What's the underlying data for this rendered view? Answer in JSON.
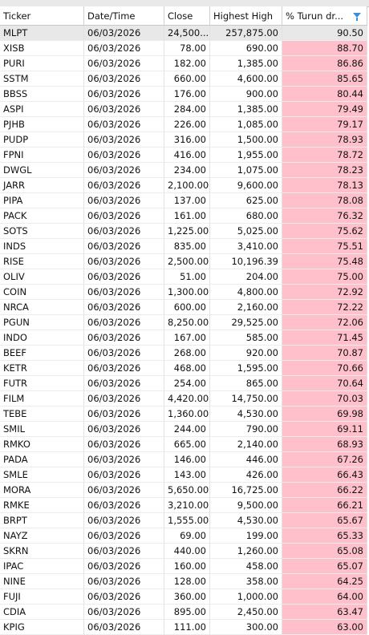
{
  "table": {
    "header": [
      "Ticker",
      "Date/Time",
      "Close",
      "Highest High",
      "% Turun dr..."
    ],
    "rows": [
      [
        "MLPT",
        "06/03/2026",
        "24,500....",
        "257,875.00",
        "90.50"
      ],
      [
        "XISB",
        "06/03/2026",
        "78.00",
        "690.00",
        "88.70"
      ],
      [
        "PURI",
        "06/03/2026",
        "182.00",
        "1,385.00",
        "86.86"
      ],
      [
        "SSTM",
        "06/03/2026",
        "660.00",
        "4,600.00",
        "85.65"
      ],
      [
        "BBSS",
        "06/03/2026",
        "176.00",
        "900.00",
        "80.44"
      ],
      [
        "ASPI",
        "06/03/2026",
        "284.00",
        "1,385.00",
        "79.49"
      ],
      [
        "PJHB",
        "06/03/2026",
        "226.00",
        "1,085.00",
        "79.17"
      ],
      [
        "PUDP",
        "06/03/2026",
        "316.00",
        "1,500.00",
        "78.93"
      ],
      [
        "FPNI",
        "06/03/2026",
        "416.00",
        "1,955.00",
        "78.72"
      ],
      [
        "DWGL",
        "06/03/2026",
        "234.00",
        "1,075.00",
        "78.23"
      ],
      [
        "JARR",
        "06/03/2026",
        "2,100.00",
        "9,600.00",
        "78.13"
      ],
      [
        "PIPA",
        "06/03/2026",
        "137.00",
        "625.00",
        "78.08"
      ],
      [
        "PACK",
        "06/03/2026",
        "161.00",
        "680.00",
        "76.32"
      ],
      [
        "SOTS",
        "06/03/2026",
        "1,225.00",
        "5,025.00",
        "75.62"
      ],
      [
        "INDS",
        "06/03/2026",
        "835.00",
        "3,410.00",
        "75.51"
      ],
      [
        "RISE",
        "06/03/2026",
        "2,500.00",
        "10,196.39",
        "75.48"
      ],
      [
        "OLIV",
        "06/03/2026",
        "51.00",
        "204.00",
        "75.00"
      ],
      [
        "COIN",
        "06/03/2026",
        "1,300.00",
        "4,800.00",
        "72.92"
      ],
      [
        "NRCA",
        "06/03/2026",
        "600.00",
        "2,160.00",
        "72.22"
      ],
      [
        "PGUN",
        "06/03/2026",
        "8,250.00",
        "29,525.00",
        "72.06"
      ],
      [
        "INDO",
        "06/03/2026",
        "167.00",
        "585.00",
        "71.45"
      ],
      [
        "BEEF",
        "06/03/2026",
        "268.00",
        "920.00",
        "70.87"
      ],
      [
        "KETR",
        "06/03/2026",
        "468.00",
        "1,595.00",
        "70.66"
      ],
      [
        "FUTR",
        "06/03/2026",
        "254.00",
        "865.00",
        "70.64"
      ],
      [
        "FILM",
        "06/03/2026",
        "4,420.00",
        "14,750.00",
        "70.03"
      ],
      [
        "TEBE",
        "06/03/2026",
        "1,360.00",
        "4,530.00",
        "69.98"
      ],
      [
        "SMIL",
        "06/03/2026",
        "244.00",
        "790.00",
        "69.11"
      ],
      [
        "RMKO",
        "06/03/2026",
        "665.00",
        "2,140.00",
        "68.93"
      ],
      [
        "PADA",
        "06/03/2026",
        "146.00",
        "446.00",
        "67.26"
      ],
      [
        "SMLE",
        "06/03/2026",
        "143.00",
        "426.00",
        "66.43"
      ],
      [
        "MORA",
        "06/03/2026",
        "5,650.00",
        "16,725.00",
        "66.22"
      ],
      [
        "RMKE",
        "06/03/2026",
        "3,210.00",
        "9,500.00",
        "66.21"
      ],
      [
        "BRPT",
        "06/03/2026",
        "1,555.00",
        "4,530.00",
        "65.67"
      ],
      [
        "NAYZ",
        "06/03/2026",
        "69.00",
        "199.00",
        "65.33"
      ],
      [
        "SKRN",
        "06/03/2026",
        "440.00",
        "1,260.00",
        "65.08"
      ],
      [
        "IPAC",
        "06/03/2026",
        "160.00",
        "458.00",
        "65.07"
      ],
      [
        "NINE",
        "06/03/2026",
        "128.00",
        "358.00",
        "64.25"
      ],
      [
        "FUJI",
        "06/03/2026",
        "360.00",
        "1,000.00",
        "64.00"
      ],
      [
        "CDIA",
        "06/03/2026",
        "895.00",
        "2,450.00",
        "63.47"
      ],
      [
        "KPIG",
        "06/03/2026",
        "111.00",
        "300.00",
        "63.00"
      ]
    ]
  }
}
